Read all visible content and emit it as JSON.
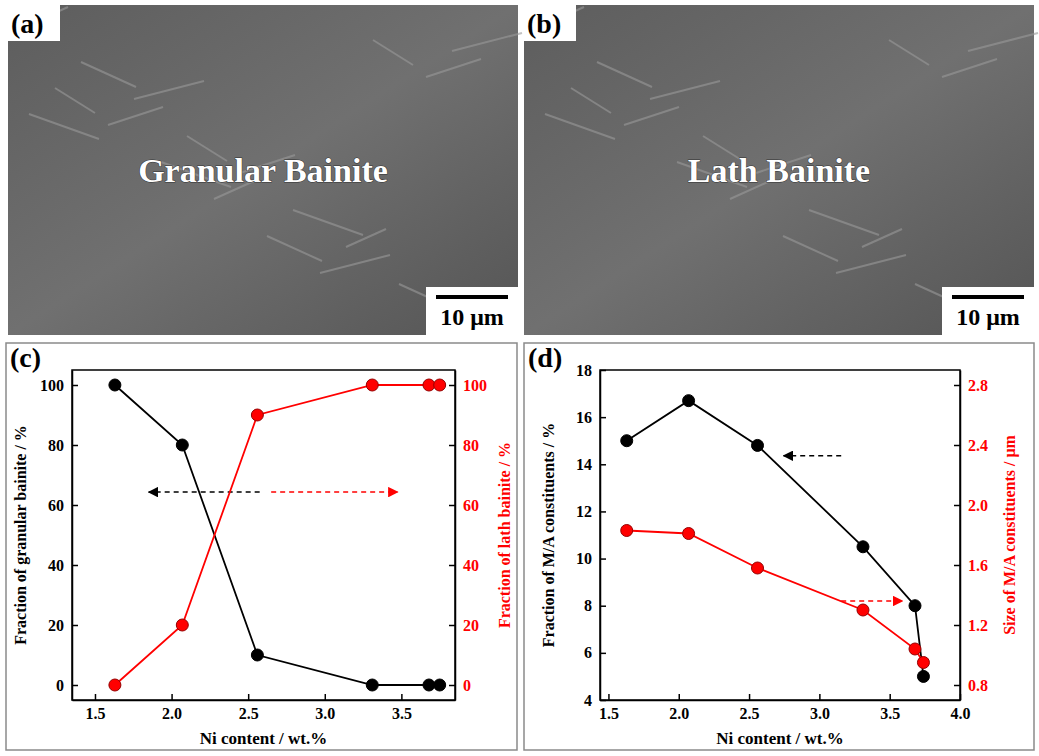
{
  "images": [
    {
      "panel": "(a)",
      "label": "Granular Bainite",
      "scale_bar": "10 μm"
    },
    {
      "panel": "(b)",
      "label": "Lath Bainite",
      "scale_bar": "10 μm"
    }
  ],
  "chart_data": [
    {
      "panel": "(c)",
      "type": "line",
      "marker": "circle",
      "x_label": "Ni content / wt.%",
      "y_label": "Fraction of granular bainite / %",
      "y2_label": "Fraction of lath bainite / %",
      "x": [
        1.63,
        2.07,
        2.56,
        3.31,
        3.68,
        3.75
      ],
      "xlim": [
        1.35,
        3.85
      ],
      "xticks": [
        1.5,
        {
          "value": 2,
          "label": "2.0"
        },
        2.5,
        {
          "value": 3,
          "label": "3.0"
        },
        3.5
      ],
      "ylim": [
        -5,
        105
      ],
      "yticks": [
        0,
        20,
        40,
        60,
        80,
        100
      ],
      "y2lim": [
        -5,
        105
      ],
      "y2ticks": [
        0,
        20,
        40,
        60,
        80,
        100
      ],
      "series": [
        {
          "color": "#000000",
          "values": [
            100,
            80,
            10,
            0,
            0,
            0
          ]
        },
        {
          "color": "#ff0000",
          "axis": "y2",
          "values": [
            0,
            20,
            90,
            100,
            100,
            100
          ]
        }
      ]
    },
    {
      "panel": "(d)",
      "type": "line",
      "marker": "circle",
      "x_label": "Ni content / wt.%",
      "y_label": "Fraction of M/A constituents / %",
      "y2_label": "Size of M/A constituents / μm",
      "x": [
        1.63,
        2.07,
        2.56,
        3.31,
        3.68,
        3.74
      ],
      "xlim": [
        1.44,
        4.0
      ],
      "xticks": [
        1.5,
        {
          "value": 2,
          "label": "2.0"
        },
        2.5,
        {
          "value": 3,
          "label": "3.0"
        },
        3.5,
        {
          "value": 4,
          "label": "4.0"
        }
      ],
      "ylim": [
        4,
        18
      ],
      "yticks": [
        4,
        6,
        8,
        10,
        12,
        14,
        16,
        18
      ],
      "y2lim": [
        0.7,
        2.9
      ],
      "y2ticks": [
        0.8,
        1.2,
        1.6,
        {
          "value": 2,
          "label": "2.0"
        },
        2.4,
        2.8
      ],
      "series": [
        {
          "color": "#000000",
          "values": [
            15.0,
            16.7,
            14.8,
            10.5,
            8.0,
            5.0
          ]
        },
        {
          "color": "#ff0000",
          "axis": "y2",
          "values": [
            1.83,
            1.81,
            1.58,
            1.3,
            1.04,
            0.95
          ]
        }
      ]
    }
  ]
}
